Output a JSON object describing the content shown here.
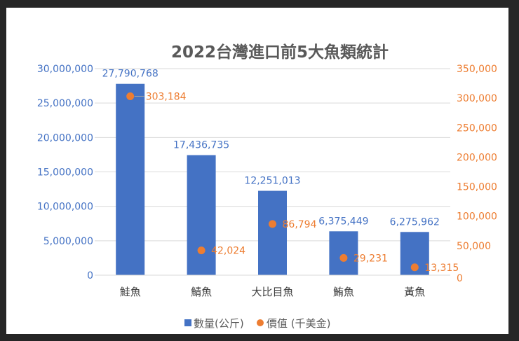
{
  "chart_data": {
    "type": "bar+scatter",
    "title": "2022台灣進口前5大魚類統計",
    "categories": [
      "鮭魚",
      "鯖魚",
      "大比目魚",
      "鮪魚",
      "黃魚"
    ],
    "series": [
      {
        "name": "數量(公斤)",
        "type": "bar",
        "axis": "left",
        "color": "#4472C4",
        "values": [
          27790768,
          17436735,
          12251013,
          6375449,
          6275962
        ],
        "labels": [
          "27,790,768",
          "17,436,735",
          "12,251,013",
          "6,375,449",
          "6,275,962"
        ]
      },
      {
        "name": "價值 (千美金)",
        "type": "scatter",
        "axis": "right",
        "color": "#ED7D31",
        "values": [
          303184,
          42024,
          86794,
          29231,
          13315
        ],
        "labels": [
          "303,184",
          "42,024",
          "86,794",
          "29,231",
          "13,315"
        ]
      }
    ],
    "y_left": {
      "range": [
        0,
        30000000
      ],
      "ticks": [
        "0",
        "5,000,000",
        "10,000,000",
        "15,000,000",
        "20,000,000",
        "25,000,000",
        "30,000,000"
      ]
    },
    "y_right": {
      "range": [
        0,
        350000
      ],
      "ticks": [
        "0",
        "50,000",
        "100,000",
        "150,000",
        "200,000",
        "250,000",
        "300,000",
        "350,000"
      ]
    },
    "grid": true,
    "legend": "bottom"
  }
}
